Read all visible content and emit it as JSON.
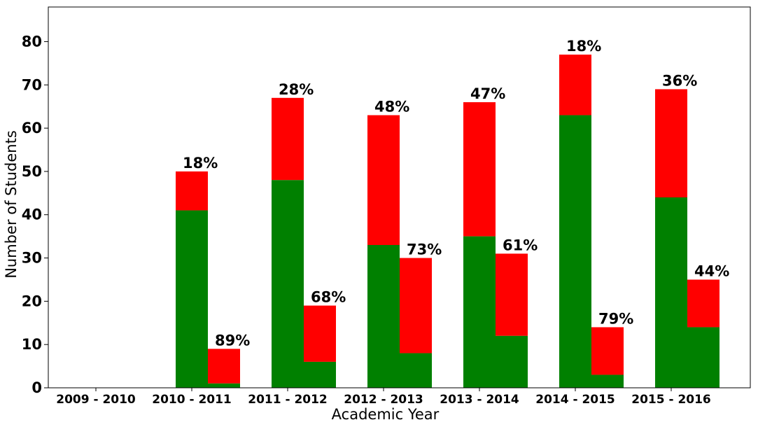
{
  "chart_data": {
    "type": "bar",
    "stacked": true,
    "grouped": true,
    "xlabel": "Academic Year",
    "ylabel": "Number of Students",
    "ylim": [
      0,
      88
    ],
    "yticks": [
      0,
      10,
      20,
      30,
      40,
      50,
      60,
      70,
      80
    ],
    "grid": false,
    "legend": "none",
    "colors": {
      "bottom": "#008000",
      "top": "#ff0000"
    },
    "categories": [
      "2009 - 2010",
      "2010 - 2011",
      "2011 - 2012",
      "2012 - 2013",
      "2013 - 2014",
      "2014 - 2015",
      "2015 - 2016"
    ],
    "groups": [
      {
        "green": [
          0,
          41,
          48,
          33,
          35,
          63,
          44
        ],
        "total": [
          0,
          50,
          67,
          63,
          66,
          77,
          69
        ],
        "labels": [
          "",
          "18%",
          "28%",
          "48%",
          "47%",
          "18%",
          "36%"
        ]
      },
      {
        "green": [
          0,
          1,
          6,
          8,
          12,
          3,
          14
        ],
        "total": [
          0,
          9,
          19,
          30,
          31,
          14,
          25
        ],
        "labels": [
          "",
          "89%",
          "68%",
          "73%",
          "61%",
          "79%",
          "44%"
        ]
      }
    ]
  }
}
